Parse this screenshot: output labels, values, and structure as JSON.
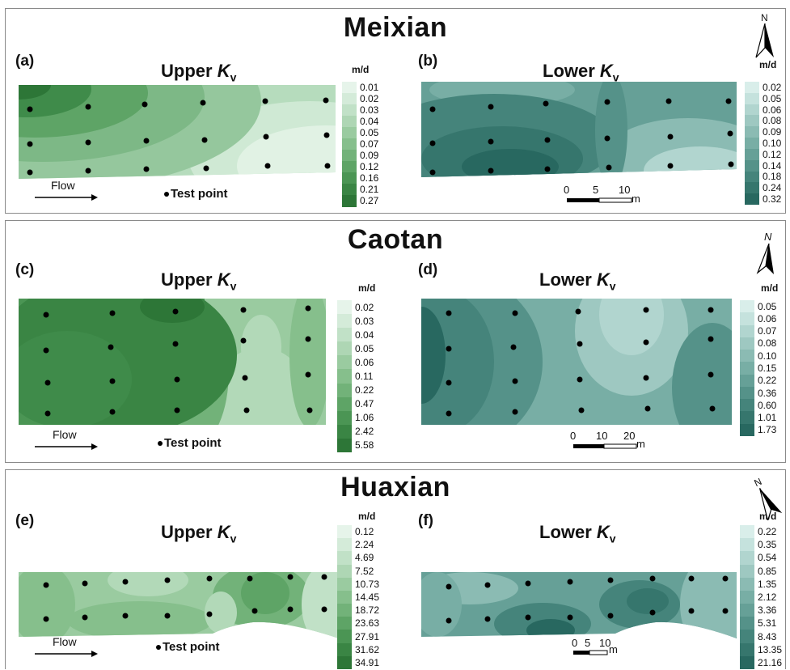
{
  "sites": [
    {
      "key": "meixian",
      "name": "Meixian",
      "upper": {
        "label": "(a)",
        "title_main": "Upper ",
        "title_k": "K",
        "title_sub": "v",
        "unit": "m/d",
        "ticks": [
          "0.01",
          "0.02",
          "0.03",
          "0.04",
          "0.05",
          "0.07",
          "0.09",
          "0.12",
          "0.16",
          "0.21",
          "0.27"
        ]
      },
      "lower": {
        "label": "(b)",
        "title_main": "Lower ",
        "title_k": "K",
        "title_sub": "v",
        "unit": "m/d",
        "ticks": [
          "0.02",
          "0.05",
          "0.06",
          "0.08",
          "0.09",
          "0.10",
          "0.12",
          "0.14",
          "0.18",
          "0.24",
          "0.32"
        ]
      },
      "flow_label": "Flow",
      "test_point_label": "Test point",
      "scale": {
        "ticks": [
          "0",
          "5",
          "10"
        ],
        "unit": "m"
      },
      "north_label": "N"
    },
    {
      "key": "caotan",
      "name": "Caotan",
      "upper": {
        "label": "(c)",
        "title_main": "Upper ",
        "title_k": "K",
        "title_sub": "v",
        "unit": "m/d",
        "ticks": [
          "0.02",
          "0.03",
          "0.04",
          "0.05",
          "0.06",
          "0.11",
          "0.22",
          "0.47",
          "1.06",
          "2.42",
          "5.58"
        ]
      },
      "lower": {
        "label": "(d)",
        "title_main": "Lower ",
        "title_k": "K",
        "title_sub": "v",
        "unit": "m/d",
        "ticks": [
          "0.05",
          "0.06",
          "0.07",
          "0.08",
          "0.10",
          "0.15",
          "0.22",
          "0.36",
          "0.60",
          "1.01",
          "1.73"
        ]
      },
      "flow_label": "Flow",
      "test_point_label": "Test point",
      "scale": {
        "ticks": [
          "0",
          "10",
          "20"
        ],
        "unit": "m"
      },
      "north_label": "N"
    },
    {
      "key": "huaxian",
      "name": "Huaxian",
      "upper": {
        "label": "(e)",
        "title_main": "Upper ",
        "title_k": "K",
        "title_sub": "v",
        "unit": "m/d",
        "ticks": [
          "0.12",
          "2.24",
          "4.69",
          "7.52",
          "10.73",
          "14.45",
          "18.72",
          "23.63",
          "27.91",
          "31.62",
          "34.91"
        ]
      },
      "lower": {
        "label": "(f)",
        "title_main": "Lower ",
        "title_k": "K",
        "title_sub": "v",
        "unit": "m/d",
        "ticks": [
          "0.22",
          "0.35",
          "0.54",
          "0.85",
          "1.35",
          "2.12",
          "3.36",
          "5.31",
          "8.43",
          "13.35",
          "21.16"
        ]
      },
      "flow_label": "Flow",
      "test_point_label": "Test point",
      "scale": {
        "ticks": [
          "0",
          "5",
          "10"
        ],
        "unit": "m"
      },
      "north_label": "N"
    }
  ],
  "colors": {
    "upper_ramp": [
      "#e6f4ea",
      "#d4ebd9",
      "#c1e1c7",
      "#aed6b4",
      "#9acba0",
      "#86bf8c",
      "#72b279",
      "#5ea466",
      "#4b9554",
      "#3a8544",
      "#2d7637"
    ],
    "lower_ramp": [
      "#d9eeea",
      "#c5e2dd",
      "#b1d5cf",
      "#9ec8c1",
      "#8bbbb3",
      "#78aea5",
      "#66a097",
      "#559289",
      "#45847b",
      "#36766d",
      "#286860"
    ]
  },
  "chart_data": [
    {
      "type": "heatmap",
      "title": "Meixian",
      "panel": "(a) Upper Kv",
      "unit": "m/d",
      "legend_levels": [
        0.01,
        0.02,
        0.03,
        0.04,
        0.05,
        0.07,
        0.09,
        0.12,
        0.16,
        0.21,
        0.27
      ],
      "test_point_columns": 6,
      "test_point_rows": 3
    },
    {
      "type": "heatmap",
      "title": "Meixian",
      "panel": "(b) Lower Kv",
      "unit": "m/d",
      "legend_levels": [
        0.02,
        0.05,
        0.06,
        0.08,
        0.09,
        0.1,
        0.12,
        0.14,
        0.18,
        0.24,
        0.32
      ],
      "test_point_columns": 6,
      "test_point_rows": 3
    },
    {
      "type": "heatmap",
      "title": "Caotan",
      "panel": "(c) Upper Kv",
      "unit": "m/d",
      "legend_levels": [
        0.02,
        0.03,
        0.04,
        0.05,
        0.06,
        0.11,
        0.22,
        0.47,
        1.06,
        2.42,
        5.58
      ],
      "test_point_columns": 5,
      "test_point_rows": 4
    },
    {
      "type": "heatmap",
      "title": "Caotan",
      "panel": "(d) Lower Kv",
      "unit": "m/d",
      "legend_levels": [
        0.05,
        0.06,
        0.07,
        0.08,
        0.1,
        0.15,
        0.22,
        0.36,
        0.6,
        1.01,
        1.73
      ],
      "test_point_columns": 5,
      "test_point_rows": 4
    },
    {
      "type": "heatmap",
      "title": "Huaxian",
      "panel": "(e) Upper Kv",
      "unit": "m/d",
      "legend_levels": [
        0.12,
        2.24,
        4.69,
        7.52,
        10.73,
        14.45,
        18.72,
        23.63,
        27.91,
        31.62,
        34.91
      ],
      "test_point_columns": 9,
      "test_point_rows": 2
    },
    {
      "type": "heatmap",
      "title": "Huaxian",
      "panel": "(f) Lower Kv",
      "unit": "m/d",
      "legend_levels": [
        0.22,
        0.35,
        0.54,
        0.85,
        1.35,
        2.12,
        3.36,
        5.31,
        8.43,
        13.35,
        21.16
      ],
      "test_point_columns": 9,
      "test_point_rows": 2
    }
  ]
}
